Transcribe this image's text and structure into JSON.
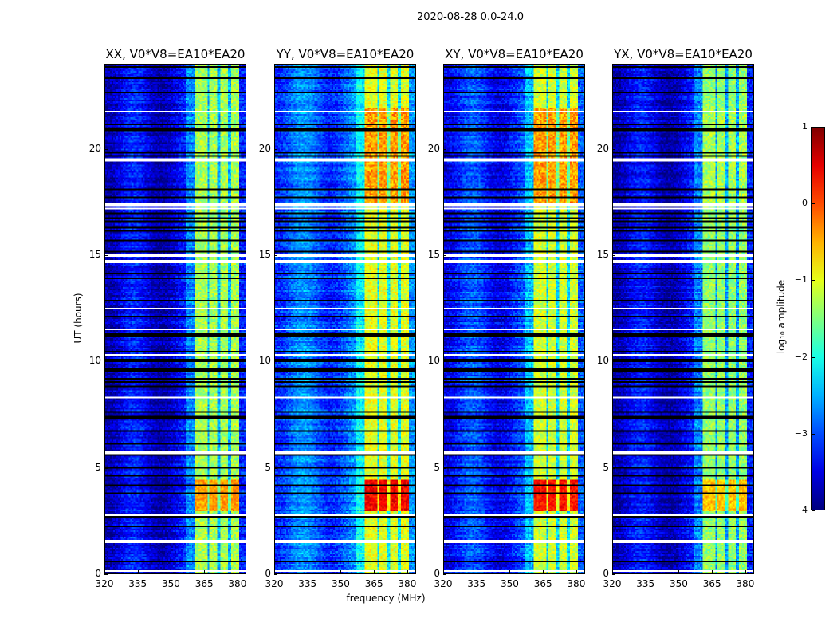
{
  "chart_data": {
    "type": "heatmap",
    "title": "2020-08-28 0.0-24.0",
    "xlabel": "frequency (MHz)",
    "ylabel": "UT (hours)",
    "xlim": [
      320,
      384
    ],
    "ylim": [
      0,
      24
    ],
    "xticks": [
      "320",
      "335",
      "350",
      "365",
      "380"
    ],
    "xtick_values": [
      320,
      335,
      350,
      365,
      380
    ],
    "yticks": [
      "0",
      "5",
      "10",
      "15",
      "20"
    ],
    "ytick_values": [
      0,
      5,
      10,
      15,
      20
    ],
    "colorbar": {
      "label": "log₁₀ amplitude",
      "range": [
        -4,
        1
      ],
      "ticks": [
        "1",
        "0",
        "−1",
        "−2",
        "−3",
        "−4"
      ],
      "tick_values": [
        1,
        0,
        -1,
        -2,
        -3,
        -4
      ],
      "colormap": "jet"
    },
    "panels": [
      {
        "title": "XX, V0*V8=EA10*EA20",
        "background_level": -3.5,
        "band_level": -1.3,
        "burst_level": -0.4,
        "late_level": -1.3
      },
      {
        "title": "YY, V0*V8=EA10*EA20",
        "background_level": -2.9,
        "band_level": -1.0,
        "burst_level": 0.4,
        "late_level": -0.4
      },
      {
        "title": "XY, V0*V8=EA10*EA20",
        "background_level": -3.2,
        "band_level": -1.1,
        "burst_level": 0.3,
        "late_level": -0.4
      },
      {
        "title": "YX, V0*V8=EA10*EA20",
        "background_level": -3.5,
        "band_level": -1.4,
        "burst_level": -0.6,
        "late_level": -1.3
      }
    ],
    "bright_band_MHz": [
      361,
      381
    ],
    "channel_gaps_MHz": [
      367,
      372,
      377
    ],
    "burst_hours": [
      2.9,
      4.4
    ],
    "flagged_hours": [
      0.1,
      1.5,
      2.75,
      5.7,
      8.3,
      10.3,
      11.5,
      12.5,
      14.7,
      15.0,
      17.2,
      17.4,
      19.5,
      21.8
    ]
  }
}
